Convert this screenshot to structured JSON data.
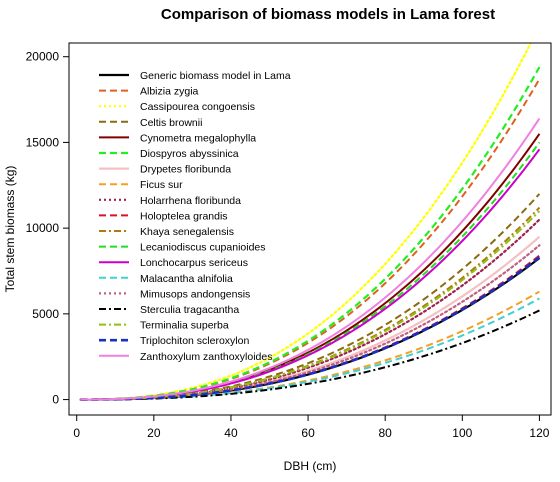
{
  "chart_data": {
    "type": "line",
    "title": "Comparison of biomass models in Lama forest",
    "xlabel": "DBH (cm)",
    "ylabel": "Total stem biomass (kg)",
    "xlim": [
      -2,
      123
    ],
    "ylim": [
      -900,
      20800
    ],
    "xticks": [
      0,
      20,
      40,
      60,
      80,
      100,
      120
    ],
    "yticks": [
      0,
      5000,
      10000,
      15000,
      20000
    ],
    "grid": false,
    "legend_position": "top-left",
    "x_start": 1,
    "x_end": 120,
    "series": [
      {
        "name": "Generic biomass model in Lama",
        "color": "#000000",
        "dash": "solid",
        "width": 2.2,
        "y_at_120": 8250
      },
      {
        "name": "Albizia zygia",
        "color": "#e06020",
        "dash": "dash",
        "width": 2,
        "y_at_120": 18700
      },
      {
        "name": "Cassipourea congoensis",
        "color": "#ffff00",
        "dash": "dot",
        "width": 2.2,
        "y_at_120": 21800
      },
      {
        "name": "Celtis brownii",
        "color": "#8b6a10",
        "dash": "dash",
        "width": 2,
        "y_at_120": 12000
      },
      {
        "name": "Cynometra megalophylla",
        "color": "#800000",
        "dash": "solid",
        "width": 2,
        "y_at_120": 15500
      },
      {
        "name": "Diospyros abyssinica",
        "color": "#22ee22",
        "dash": "dash",
        "width": 2.2,
        "y_at_120": 19400
      },
      {
        "name": "Drypetes floribunda",
        "color": "#f5c0c0",
        "dash": "solid",
        "width": 2.2,
        "y_at_120": 9500
      },
      {
        "name": "Ficus sur",
        "color": "#f5a020",
        "dash": "dash",
        "width": 2,
        "y_at_120": 6300
      },
      {
        "name": "Holarrhena floribunda",
        "color": "#a02050",
        "dash": "dot",
        "width": 2.2,
        "y_at_120": 10500
      },
      {
        "name": "Holoptelea grandis",
        "color": "#dd1122",
        "dash": "dash",
        "width": 2,
        "y_at_120": 8400
      },
      {
        "name": "Khaya senegalensis",
        "color": "#b07a10",
        "dash": "dashdot",
        "width": 2,
        "y_at_120": 11200
      },
      {
        "name": "Lecaniodiscus cupanioides",
        "color": "#22dd22",
        "dash": "dash",
        "width": 2,
        "y_at_120": 15000
      },
      {
        "name": "Lonchocarpus sericeus",
        "color": "#cc00cc",
        "dash": "solid",
        "width": 2,
        "y_at_120": 14600
      },
      {
        "name": "Malacantha alnifolia",
        "color": "#40d0d0",
        "dash": "dash",
        "width": 2,
        "y_at_120": 5900
      },
      {
        "name": "Mimusops andongensis",
        "color": "#c06080",
        "dash": "dot",
        "width": 2.2,
        "y_at_120": 9000
      },
      {
        "name": "Sterculia tragacantha",
        "color": "#000000",
        "dash": "dashdot",
        "width": 2,
        "y_at_120": 5200
      },
      {
        "name": "Terminalia superba",
        "color": "#90c010",
        "dash": "dashdot",
        "width": 2,
        "y_at_120": 11000
      },
      {
        "name": "Triplochiton scleroxylon",
        "color": "#1a30c0",
        "dash": "dash",
        "width": 2.6,
        "y_at_120": 8300
      },
      {
        "name": "Zanthoxylum zanthoxyloides",
        "color": "#f080e0",
        "dash": "solid",
        "width": 2,
        "y_at_120": 16400
      }
    ]
  }
}
